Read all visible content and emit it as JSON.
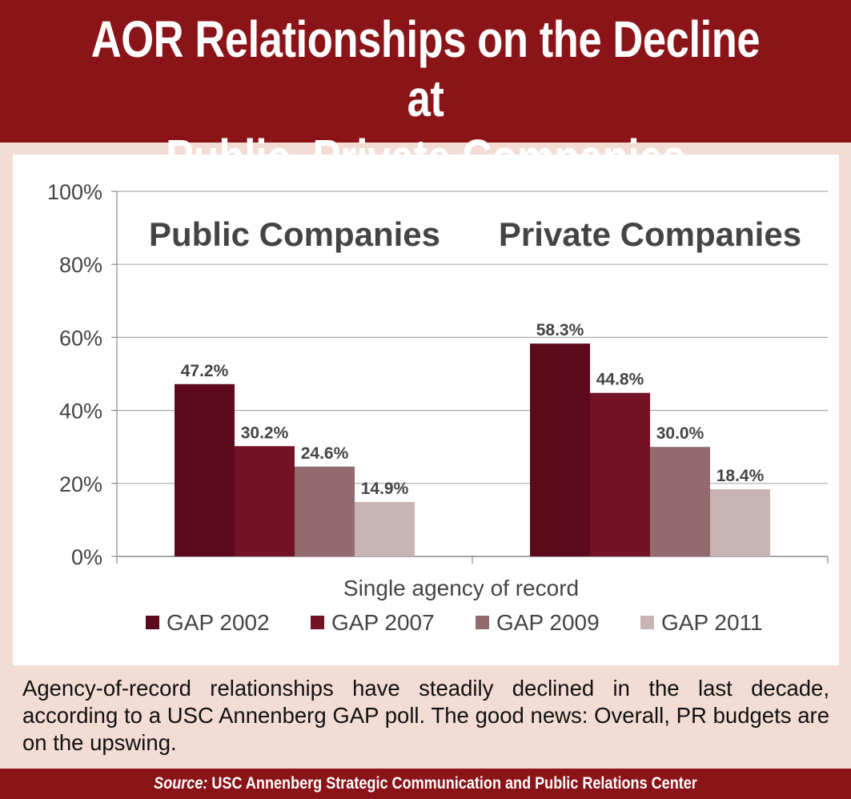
{
  "title_line1": "AOR Relationships on the Decline at",
  "title_line2": "Public, Private Companies",
  "caption": "Agency-of-record relationships have steadily declined in the last decade, according to a USC Annenberg GAP poll. The good news: Overall, PR budgets are on the upswing.",
  "footer": {
    "source_label": "Source:",
    "source_text": " USC Annenberg Strategic Communication and Public Relations Center"
  },
  "colors": {
    "banner": "#8b1418",
    "background": "#f3dcd4",
    "gap2002": "#5c0a1c",
    "gap2007": "#741226",
    "gap2009": "#936a6e",
    "gap2011": "#c8b4b2"
  },
  "chart_data": {
    "type": "bar",
    "categories": [
      "Public Companies",
      "Private Companies"
    ],
    "xlabel": "Single agency of record",
    "ylabel": "",
    "ylim": [
      0,
      100
    ],
    "yticks": [
      "0%",
      "20%",
      "40%",
      "60%",
      "80%",
      "100%"
    ],
    "grid": true,
    "legend_position": "bottom",
    "series": [
      {
        "name": "GAP 2002",
        "values": [
          47.2,
          58.3
        ],
        "labels": [
          "47.2%",
          "58.3%"
        ],
        "color": "#5c0a1c"
      },
      {
        "name": "GAP 2007",
        "values": [
          30.2,
          44.8
        ],
        "labels": [
          "30.2%",
          "44.8%"
        ],
        "color": "#741226"
      },
      {
        "name": "GAP 2009",
        "values": [
          24.6,
          30.0
        ],
        "labels": [
          "24.6%",
          "30.0%"
        ],
        "color": "#936a6e"
      },
      {
        "name": "GAP 2011",
        "values": [
          14.9,
          18.4
        ],
        "labels": [
          "14.9%",
          "18.4%"
        ],
        "color": "#c8b4b2"
      }
    ]
  }
}
